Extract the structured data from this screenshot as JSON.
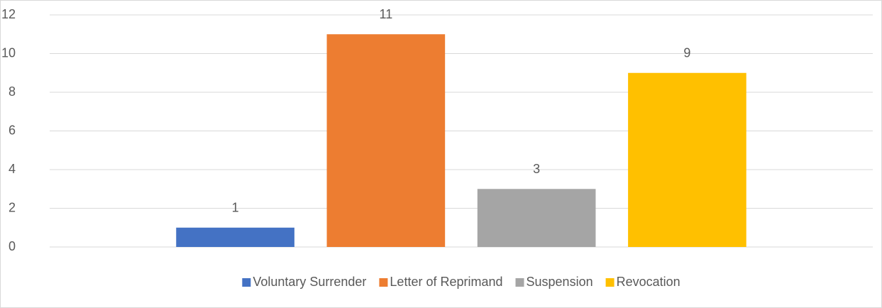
{
  "chart_data": {
    "type": "bar",
    "categories": [
      null
    ],
    "series": [
      {
        "name": "Voluntary Surrender",
        "color": "#4472c4",
        "values": [
          1
        ]
      },
      {
        "name": "Letter of Reprimand",
        "color": "#ed7d31",
        "values": [
          11
        ]
      },
      {
        "name": "Suspension",
        "color": "#a5a5a5",
        "values": [
          3
        ]
      },
      {
        "name": "Revocation",
        "color": "#ffc000",
        "values": [
          9
        ]
      }
    ],
    "ylim": [
      0,
      12
    ],
    "yticks": [
      0,
      2,
      4,
      6,
      8,
      10,
      12
    ],
    "grid": true,
    "legend": "bottom"
  }
}
